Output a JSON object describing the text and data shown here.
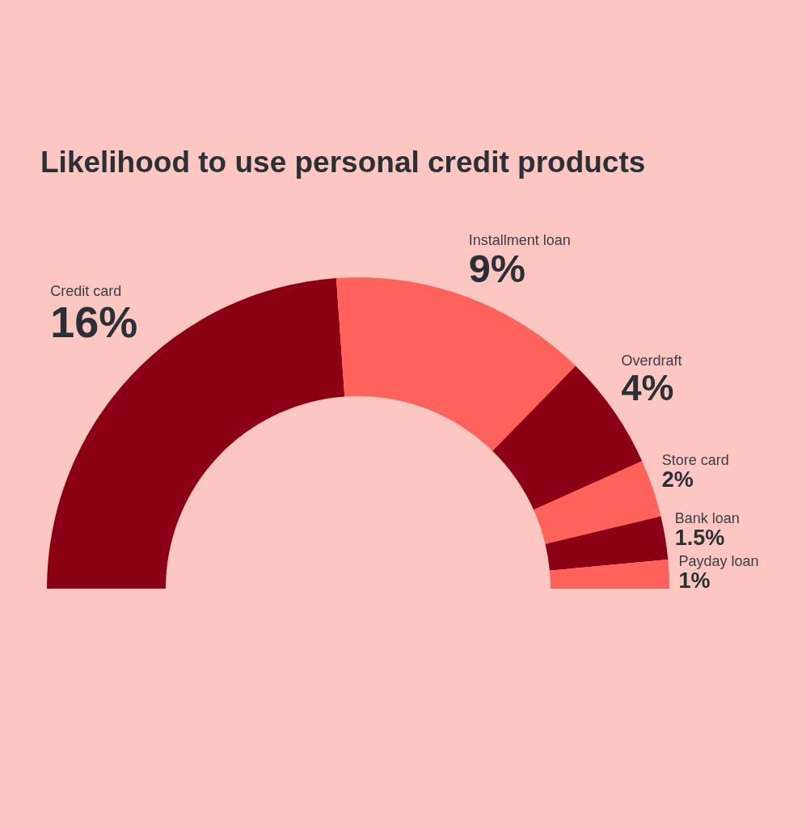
{
  "chart_data": {
    "type": "donut",
    "title": "Likelihood to use personal credit products",
    "categories": [
      "Credit card",
      "Installment loan",
      "Overdraft",
      "Store card",
      "Bank loan",
      "Payday loan"
    ],
    "values": [
      16,
      9,
      4,
      2,
      1.5,
      1
    ],
    "colors": [
      "#8b0012",
      "#ff625b",
      "#8b0012",
      "#ff625b",
      "#8b0012",
      "#ff625b"
    ],
    "value_labels": [
      "16%",
      "9%",
      "4%",
      "2%",
      "1.5%",
      "1%"
    ],
    "legend": false
  }
}
